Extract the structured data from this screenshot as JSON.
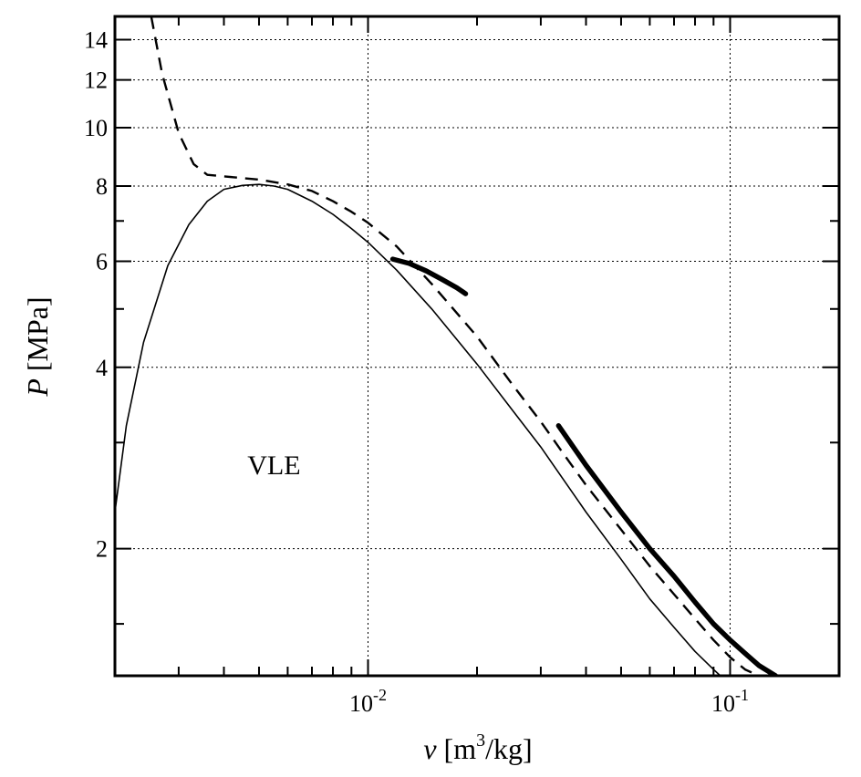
{
  "chart_data": {
    "type": "line",
    "xscale": "log",
    "yscale": "log",
    "xlim": [
      0.002,
      0.2
    ],
    "ylim": [
      1.23,
      15.3
    ],
    "grid": true,
    "xlabel": {
      "italic": "v",
      "pre": " [m",
      "sup": "3",
      "post": "/kg]"
    },
    "ylabel": {
      "italic": "P",
      "post": " [MPa]"
    },
    "xticks": [
      {
        "value": 0.01,
        "base": "10",
        "exp": "-2"
      },
      {
        "value": 0.1,
        "base": "10",
        "exp": "-1"
      }
    ],
    "xminor": [
      0.003,
      0.004,
      0.005,
      0.006,
      0.007,
      0.008,
      0.009,
      0.02,
      0.03,
      0.04,
      0.05,
      0.06,
      0.07,
      0.08,
      0.09
    ],
    "yticks": [
      {
        "value": 2,
        "label": "2"
      },
      {
        "value": 4,
        "label": "4"
      },
      {
        "value": 6,
        "label": "6"
      },
      {
        "value": 8,
        "label": "8"
      },
      {
        "value": 10,
        "label": "10"
      },
      {
        "value": 12,
        "label": "12"
      },
      {
        "value": 14,
        "label": "14"
      }
    ],
    "yminor": [
      1.5,
      3,
      5,
      7
    ],
    "annotations": [
      {
        "text": "VLE",
        "x": 0.0055,
        "y": 2.75
      }
    ],
    "series": [
      {
        "style": "thin-solid",
        "x": [
          0.002,
          0.00215,
          0.0024,
          0.0028,
          0.0032,
          0.0036,
          0.004,
          0.0045,
          0.005,
          0.0055,
          0.006,
          0.007,
          0.008,
          0.009,
          0.01,
          0.012,
          0.015,
          0.02,
          0.025,
          0.03,
          0.04,
          0.05,
          0.06,
          0.07,
          0.08,
          0.09,
          0.094
        ],
        "y": [
          2.3,
          3.2,
          4.4,
          5.9,
          6.9,
          7.55,
          7.9,
          8.02,
          8.05,
          8.0,
          7.9,
          7.55,
          7.18,
          6.8,
          6.45,
          5.8,
          5.0,
          4.05,
          3.4,
          2.95,
          2.3,
          1.92,
          1.65,
          1.48,
          1.35,
          1.26,
          1.23
        ]
      },
      {
        "style": "dashed",
        "x": [
          0.00252,
          0.0027,
          0.003,
          0.0033,
          0.0036,
          0.004,
          0.005,
          0.006,
          0.007,
          0.008,
          0.009,
          0.01,
          0.012,
          0.015,
          0.02,
          0.025,
          0.03,
          0.035,
          0.04,
          0.05,
          0.06,
          0.07,
          0.08,
          0.09,
          0.1,
          0.11,
          0.12,
          0.13
        ],
        "y": [
          15.3,
          12.3,
          9.8,
          8.7,
          8.35,
          8.3,
          8.2,
          8.05,
          7.85,
          7.55,
          7.25,
          6.95,
          6.35,
          5.5,
          4.5,
          3.75,
          3.25,
          2.85,
          2.55,
          2.15,
          1.87,
          1.68,
          1.53,
          1.41,
          1.32,
          1.26,
          1.23,
          1.22
        ]
      },
      {
        "style": "thick-solid",
        "segments": [
          {
            "x": [
              0.0117,
              0.013,
              0.0145,
              0.016,
              0.0176,
              0.0186
            ],
            "y": [
              6.05,
              5.95,
              5.78,
              5.6,
              5.42,
              5.3
            ]
          },
          {
            "x": [
              0.0336,
              0.04,
              0.05,
              0.06,
              0.07,
              0.08,
              0.09,
              0.1,
              0.11,
              0.12,
              0.1335
            ],
            "y": [
              3.2,
              2.75,
              2.3,
              2.0,
              1.8,
              1.63,
              1.5,
              1.41,
              1.34,
              1.28,
              1.23
            ]
          }
        ]
      }
    ]
  }
}
